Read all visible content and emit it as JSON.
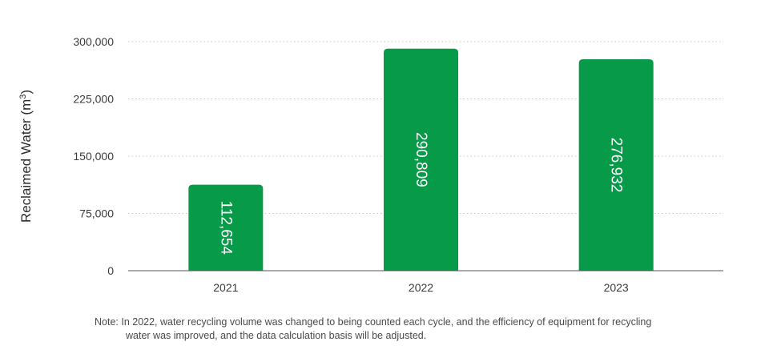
{
  "chart_data": {
    "type": "bar",
    "categories": [
      "2021",
      "2022",
      "2023"
    ],
    "values": [
      112654,
      290809,
      276932
    ],
    "data_labels": [
      "112,654",
      "290,809",
      "276,932"
    ],
    "ylabel": "Reclaimed Water (m",
    "ylabel_superscript": "3",
    "ylabel_suffix": ")",
    "ylim": [
      0,
      300000
    ],
    "yticks": [
      0,
      75000,
      150000,
      225000,
      300000
    ],
    "ytick_labels": [
      "0",
      "75,000",
      "150,000",
      "225,000",
      "300,000"
    ],
    "grid": "horizontal dotted",
    "bar_color": "#079a48",
    "label_color": "#ffffff"
  },
  "note": {
    "line1": "Note: In 2022, water recycling volume was changed to being counted each cycle, and the efficiency of equipment for recycling",
    "line2": "water was improved, and the data calculation basis will be adjusted."
  }
}
